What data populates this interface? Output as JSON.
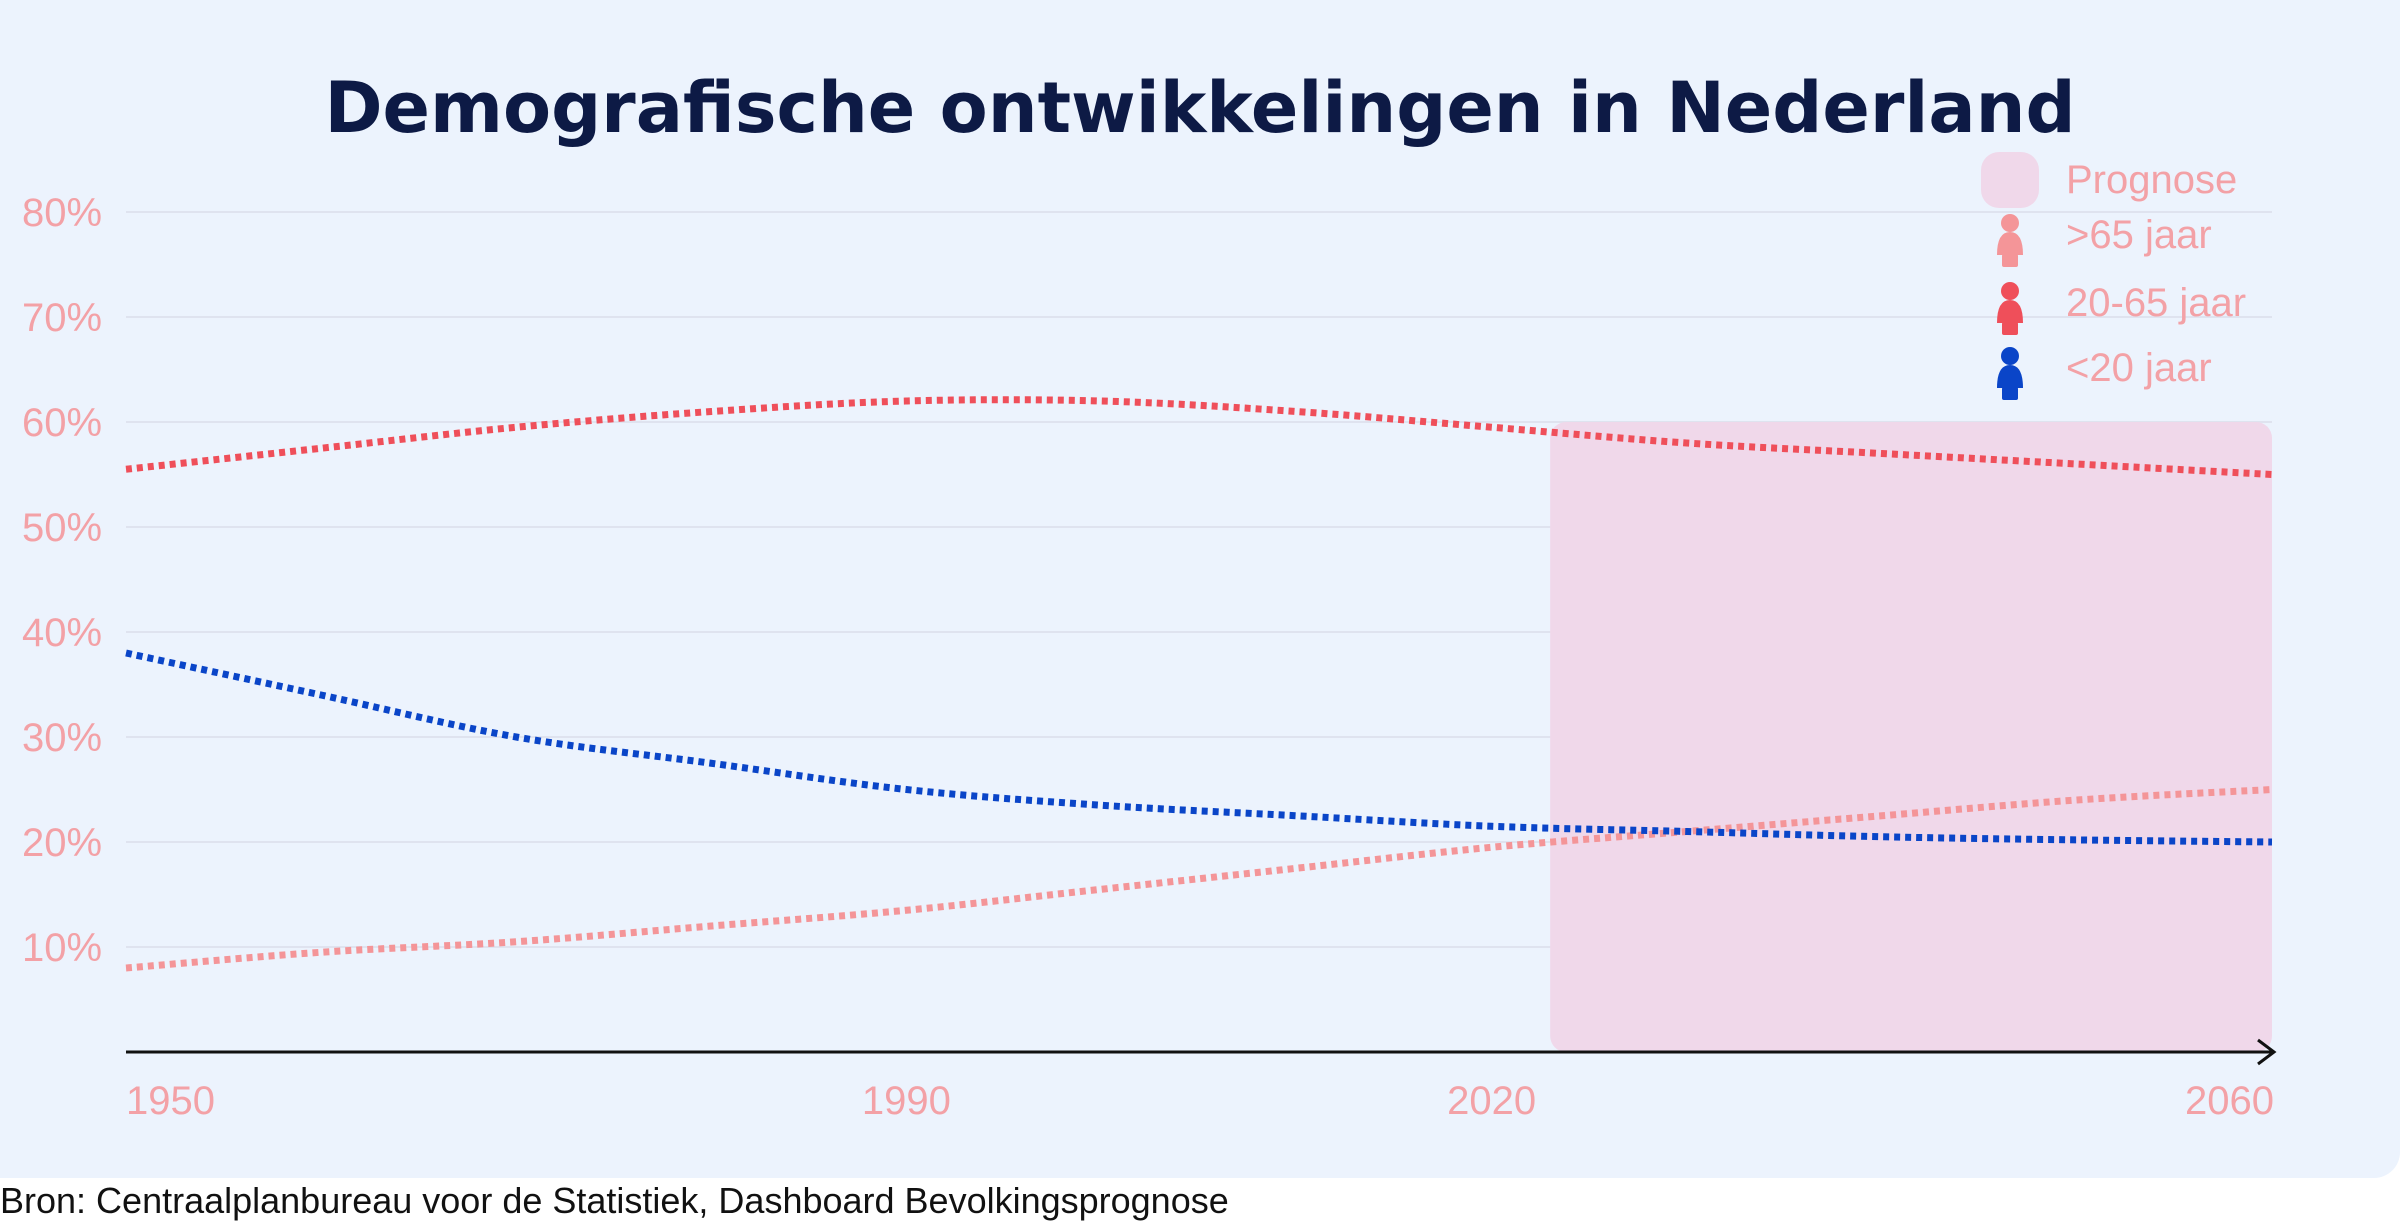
{
  "chart_data": {
    "type": "line",
    "title": "Demografische ontwikkelingen in Nederland",
    "xlabel": "",
    "ylabel": "",
    "xlim": [
      1950,
      2060
    ],
    "ylim": [
      0,
      80
    ],
    "x_ticks": [
      "1950",
      "1990",
      "2020",
      "2060"
    ],
    "y_ticks": [
      "10%",
      "20%",
      "30%",
      "40%",
      "50%",
      "60%",
      "70%",
      "80%"
    ],
    "grid": true,
    "legend_position": "top-right",
    "forecast_region": {
      "label": "Prognose",
      "x_start": 2023,
      "x_end": 2060,
      "color": "#f0d8ea"
    },
    "series": [
      {
        "name": ">65 jaar",
        "color": "#f49598",
        "x": [
          1950,
          1960,
          1970,
          1980,
          1990,
          2000,
          2010,
          2020,
          2030,
          2040,
          2050,
          2060
        ],
        "values": [
          8,
          9.5,
          10.5,
          12,
          13.5,
          15.5,
          17.5,
          19.5,
          21,
          22.5,
          24,
          25
        ]
      },
      {
        "name": "20-65 jaar",
        "color": "#ef4f5a",
        "x": [
          1950,
          1960,
          1970,
          1980,
          1990,
          2000,
          2010,
          2020,
          2030,
          2040,
          2050,
          2060
        ],
        "values": [
          55.5,
          57.5,
          59.5,
          61,
          62,
          62,
          61,
          59.5,
          58,
          57,
          56,
          55
        ]
      },
      {
        "name": "<20 jaar",
        "color": "#0a45c8",
        "x": [
          1950,
          1960,
          1970,
          1980,
          1990,
          2000,
          2010,
          2020,
          2030,
          2040,
          2050,
          2060
        ],
        "values": [
          38,
          34,
          30,
          27.5,
          25,
          23.5,
          22.5,
          21.5,
          21,
          20.5,
          20.2,
          20
        ]
      }
    ]
  },
  "source": "Bron: Centraalplanbureau voor de Statistiek, Dashboard Bevolkingsprognose",
  "icons": [
    "person-icon"
  ]
}
